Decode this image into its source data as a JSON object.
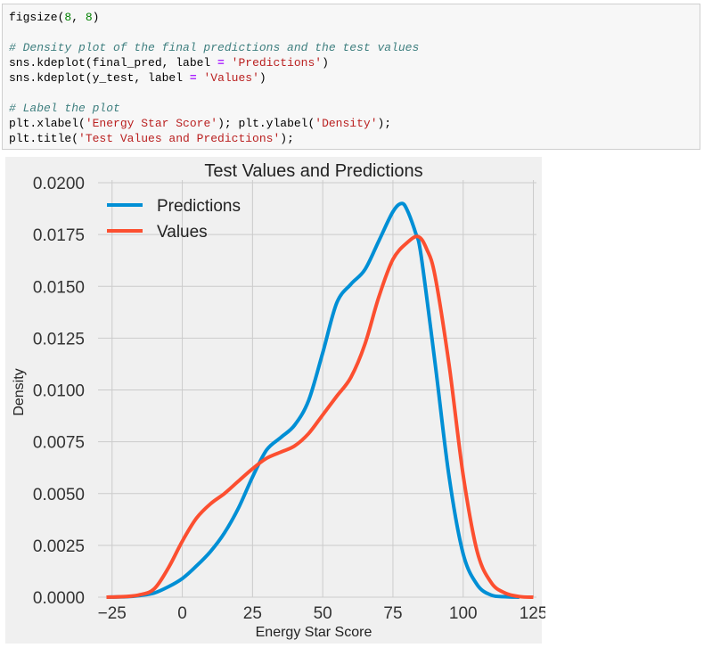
{
  "code": {
    "lines": [
      [
        {
          "t": "figsize(",
          "c": ""
        },
        {
          "t": "8",
          "c": "num"
        },
        {
          "t": ", ",
          "c": ""
        },
        {
          "t": "8",
          "c": "num"
        },
        {
          "t": ")",
          "c": ""
        }
      ],
      [],
      [
        {
          "t": "# Density plot of the final predictions and the test values",
          "c": "cm"
        }
      ],
      [
        {
          "t": "sns.kdeplot(final_pred, label ",
          "c": ""
        },
        {
          "t": "=",
          "c": "op"
        },
        {
          "t": " ",
          "c": ""
        },
        {
          "t": "'Predictions'",
          "c": "str"
        },
        {
          "t": ")",
          "c": ""
        }
      ],
      [
        {
          "t": "sns.kdeplot(y_test, label ",
          "c": ""
        },
        {
          "t": "=",
          "c": "op"
        },
        {
          "t": " ",
          "c": ""
        },
        {
          "t": "'Values'",
          "c": "str"
        },
        {
          "t": ")",
          "c": ""
        }
      ],
      [],
      [
        {
          "t": "# Label the plot",
          "c": "cm"
        }
      ],
      [
        {
          "t": "plt.xlabel(",
          "c": ""
        },
        {
          "t": "'Energy Star Score'",
          "c": "str"
        },
        {
          "t": "); plt.ylabel(",
          "c": ""
        },
        {
          "t": "'Density'",
          "c": "str"
        },
        {
          "t": ");",
          "c": ""
        }
      ],
      [
        {
          "t": "plt.title(",
          "c": ""
        },
        {
          "t": "'Test Values and Predictions'",
          "c": "str"
        },
        {
          "t": ");",
          "c": ""
        }
      ]
    ]
  },
  "chart_data": {
    "type": "line",
    "title": "Test Values and Predictions",
    "xlabel": "Energy Star Score",
    "ylabel": "Density",
    "xlim": [
      -30,
      128
    ],
    "ylim": [
      0,
      0.02
    ],
    "xticks": [
      -25,
      0,
      25,
      50,
      75,
      100,
      125
    ],
    "xtick_labels": [
      "−25",
      "0",
      "25",
      "50",
      "75",
      "100",
      "125"
    ],
    "yticks": [
      0,
      0.0025,
      0.005,
      0.0075,
      0.01,
      0.0125,
      0.015,
      0.0175,
      0.02
    ],
    "ytick_labels": [
      "0.0000",
      "0.0025",
      "0.0050",
      "0.0075",
      "0.0100",
      "0.0125",
      "0.0150",
      "0.0175",
      "0.0200"
    ],
    "grid": true,
    "legend_position": "top-left",
    "series": [
      {
        "name": "Predictions",
        "color": "#008fd5",
        "x": [
          -27,
          -20,
          -15,
          -10,
          -5,
          0,
          5,
          10,
          15,
          20,
          25,
          30,
          35,
          40,
          45,
          50,
          55,
          60,
          65,
          70,
          75,
          78,
          80,
          83,
          85,
          90,
          95,
          100,
          105,
          110,
          115,
          120
        ],
        "y": [
          0,
          2e-05,
          8e-05,
          0.0002,
          0.0005,
          0.0009,
          0.0015,
          0.0022,
          0.0031,
          0.0043,
          0.0058,
          0.0071,
          0.0077,
          0.0083,
          0.0095,
          0.0118,
          0.0142,
          0.0151,
          0.0158,
          0.0172,
          0.0186,
          0.019,
          0.0187,
          0.0176,
          0.0165,
          0.0113,
          0.0058,
          0.0021,
          0.0006,
          0.0001,
          2e-05,
          0
        ]
      },
      {
        "name": "Values",
        "color": "#fc4f30",
        "x": [
          -27,
          -20,
          -15,
          -10,
          -5,
          0,
          5,
          10,
          15,
          20,
          25,
          30,
          35,
          40,
          45,
          50,
          55,
          60,
          65,
          70,
          75,
          80,
          84,
          87,
          90,
          95,
          100,
          105,
          110,
          115,
          120,
          125
        ],
        "y": [
          0,
          3e-05,
          0.00012,
          0.0004,
          0.0014,
          0.0027,
          0.0038,
          0.0045,
          0.005,
          0.0056,
          0.0062,
          0.0067,
          0.007,
          0.0073,
          0.0079,
          0.0088,
          0.0097,
          0.0106,
          0.0122,
          0.0145,
          0.0163,
          0.0171,
          0.0174,
          0.0168,
          0.0155,
          0.0112,
          0.0059,
          0.0022,
          0.0007,
          0.0002,
          3e-05,
          0
        ]
      }
    ]
  }
}
